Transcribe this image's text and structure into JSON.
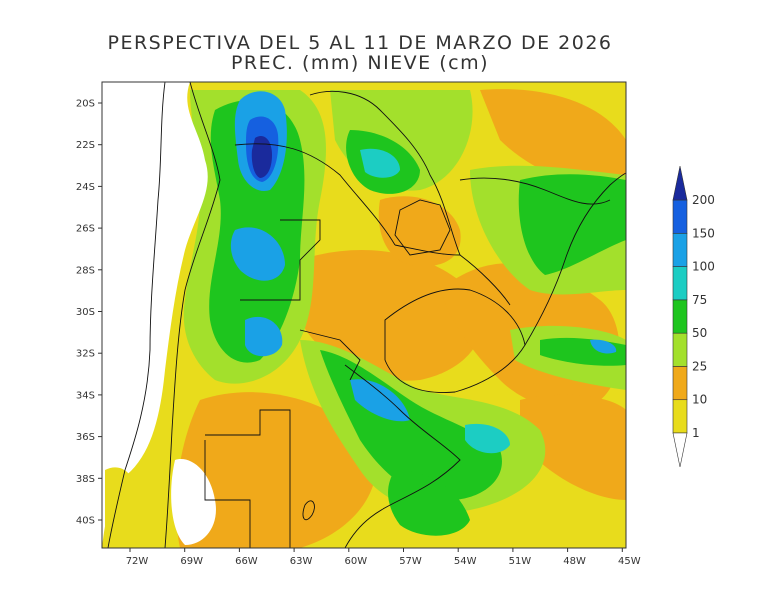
{
  "title": {
    "line1": "PERSPECTIVA DEL 5 AL 11 DE MARZO DE 2026",
    "line2": "PREC. (mm) NIEVE (cm)"
  },
  "axes": {
    "lat_ticks": [
      "20S",
      "22S",
      "24S",
      "26S",
      "28S",
      "30S",
      "32S",
      "34S",
      "36S",
      "38S",
      "40S"
    ],
    "lon_ticks": [
      "72W",
      "69W",
      "66W",
      "63W",
      "60W",
      "57W",
      "54W",
      "51W",
      "48W",
      "45W"
    ]
  },
  "colorbar": {
    "levels": [
      "1",
      "10",
      "25",
      "50",
      "75",
      "100",
      "150",
      "200"
    ],
    "colors": {
      "lt1": "#ffffff",
      "1_10": "#e8dc1c",
      "10_25": "#f0a91a",
      "25_50": "#a3e02c",
      "50_75": "#1ec51e",
      "75_100": "#1ccdc3",
      "100_150": "#1aa1e6",
      "150_200": "#1560e0",
      "gt200": "#1a2a9c"
    }
  }
}
